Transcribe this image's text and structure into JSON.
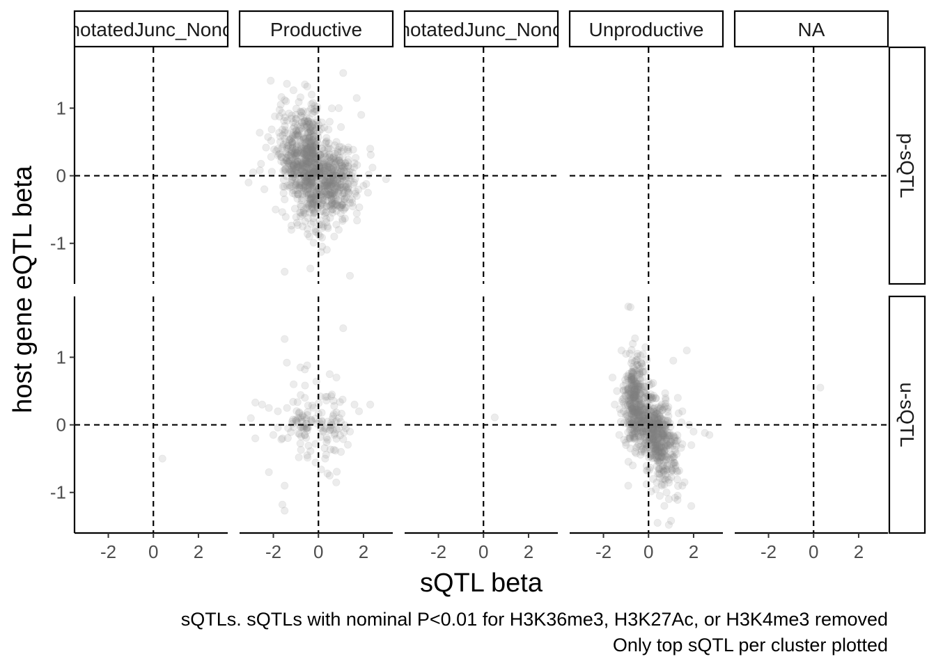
{
  "chart_data": {
    "type": "scatter",
    "xlabel": "sQTL beta",
    "ylabel": "host gene eQTL beta",
    "xlim": [
      -3.5,
      3.3
    ],
    "ylim": [
      -1.6,
      1.9
    ],
    "x_ticks": [
      -2,
      0,
      2
    ],
    "x_tick_labels": [
      "-2",
      "0",
      "2"
    ],
    "y_ticks": [
      -1,
      0,
      1
    ],
    "y_tick_labels": [
      "-1",
      "0",
      "1"
    ],
    "reference_lines": {
      "x": 0,
      "y": 0,
      "style": "dashed"
    },
    "grid": false,
    "point_color": "#808080",
    "point_opacity": 0.15,
    "col_facets": [
      "UnannotatedJunc_Noncoding",
      "Productive",
      "UnannotatedJunc_Noncoding",
      "Unproductive",
      "NA"
    ],
    "row_facets": [
      "p-sQTL",
      "u-sQTL"
    ],
    "caption_lines": [
      "sQTLs. sQTLs with nominal P<0.01 for H3K36me3, H3K27Ac, or H3K4me3 removed",
      "Only top sQTL per cluster plotted"
    ],
    "panels": [
      {
        "row": "p-sQTL",
        "col": 1,
        "points": [
          [
            -0.6,
            1.35
          ],
          [
            -0.5,
            1.32
          ],
          [
            1.1,
            1.52
          ],
          [
            1.7,
            1.15
          ],
          [
            -1.5,
            1.12
          ],
          [
            -0.3,
            1.2
          ],
          [
            0.9,
            1.0
          ],
          [
            1.9,
            0.9
          ],
          [
            -1.8,
            0.4
          ],
          [
            -2.1,
            0.28
          ],
          [
            -2.6,
            0.08
          ],
          [
            -3.1,
            -0.1
          ],
          [
            -2.9,
            0.05
          ],
          [
            2.3,
            0.4
          ],
          [
            2.4,
            0.12
          ],
          [
            3.0,
            -0.05
          ],
          [
            -1.9,
            -0.5
          ],
          [
            -1.5,
            -0.35
          ],
          [
            1.5,
            -0.4
          ],
          [
            1.7,
            -0.3
          ],
          [
            2.0,
            -0.15
          ],
          [
            -1.5,
            -1.42
          ],
          [
            1.4,
            -1.48
          ],
          [
            0.7,
            -0.9
          ],
          [
            0.4,
            -0.75
          ],
          [
            -0.8,
            -0.6
          ],
          [
            0.3,
            -0.55
          ],
          [
            0.5,
            0.8
          ],
          [
            1.0,
            0.72
          ],
          [
            0.8,
            0.5
          ],
          [
            -0.7,
            -0.75
          ],
          [
            -0.4,
            -0.9
          ],
          [
            -1.0,
            0.9
          ],
          [
            -0.2,
            0.95
          ],
          [
            1.3,
            0.2
          ],
          [
            -2.4,
            -0.2
          ],
          [
            2.2,
            -0.25
          ],
          [
            -1.2,
            -0.8
          ],
          [
            0.9,
            -0.8
          ],
          [
            -0.9,
            0.6
          ]
        ]
      },
      {
        "row": "u-sQTL",
        "col": 1,
        "points": [
          [
            -1.5,
            1.27
          ],
          [
            -1.4,
            0.92
          ],
          [
            1.1,
            1.43
          ],
          [
            -0.8,
            0.85
          ],
          [
            -0.5,
            0.88
          ],
          [
            -0.6,
            0.82
          ],
          [
            0.5,
            0.75
          ],
          [
            0.8,
            0.7
          ],
          [
            -3.0,
            0.1
          ],
          [
            -2.8,
            0.33
          ],
          [
            -2.5,
            0.3
          ],
          [
            -2.2,
            0.25
          ],
          [
            -1.8,
            0.2
          ],
          [
            1.6,
            0.3
          ],
          [
            1.8,
            0.2
          ],
          [
            2.3,
            0.3
          ],
          [
            -2.0,
            -0.15
          ],
          [
            -1.6,
            -0.2
          ],
          [
            1.4,
            -0.1
          ],
          [
            -2.2,
            -0.7
          ],
          [
            -1.5,
            -0.9
          ],
          [
            -1.5,
            -1.27
          ],
          [
            -1.6,
            -1.18
          ],
          [
            0.4,
            -0.72
          ],
          [
            0.5,
            -0.75
          ],
          [
            -0.5,
            -0.45
          ],
          [
            0.3,
            -0.5
          ],
          [
            -0.6,
            0.4
          ],
          [
            0.6,
            0.45
          ],
          [
            -2.8,
            -0.2
          ],
          [
            -1.1,
            0.6
          ],
          [
            1.0,
            -0.4
          ],
          [
            -0.3,
            0.05
          ],
          [
            0.2,
            -0.1
          ],
          [
            -0.9,
            0.1
          ]
        ]
      },
      {
        "row": "u-sQTL",
        "col": 0,
        "points": [
          [
            0.4,
            -0.5
          ]
        ]
      },
      {
        "row": "u-sQTL",
        "col": 2,
        "points": [
          [
            0.5,
            0.11
          ]
        ]
      },
      {
        "row": "u-sQTL",
        "col": 3,
        "points": [
          [
            -0.9,
            1.75
          ],
          [
            -0.8,
            1.74
          ],
          [
            -0.6,
            1.28
          ],
          [
            -0.7,
            1.2
          ],
          [
            -1.2,
            1.1
          ],
          [
            -1.0,
            1.05
          ],
          [
            1.7,
            1.1
          ],
          [
            1.1,
            0.95
          ],
          [
            -1.6,
            0.7
          ],
          [
            -1.4,
            0.5
          ],
          [
            -1.1,
            0.2
          ],
          [
            -1.3,
            -0.15
          ],
          [
            -1.0,
            -0.3
          ],
          [
            -0.9,
            -0.9
          ],
          [
            -0.7,
            -0.6
          ],
          [
            0.8,
            -1.0
          ],
          [
            0.5,
            -1.05
          ],
          [
            0.7,
            -1.2
          ],
          [
            0.4,
            -1.45
          ],
          [
            0.9,
            -1.48
          ],
          [
            1.0,
            -1.42
          ],
          [
            1.5,
            -0.9
          ],
          [
            2.0,
            -0.1
          ],
          [
            2.7,
            -0.15
          ],
          [
            2.5,
            -0.12
          ],
          [
            1.3,
            0.4
          ],
          [
            1.5,
            0.2
          ],
          [
            1.8,
            0.0
          ],
          [
            0.5,
            -0.65
          ],
          [
            -0.3,
            0.9
          ],
          [
            1.2,
            -0.6
          ],
          [
            0.2,
            -0.8
          ],
          [
            1.9,
            -0.3
          ],
          [
            -1.5,
            0.3
          ],
          [
            0.9,
            -1.1
          ],
          [
            0.6,
            -0.9
          ],
          [
            1.6,
            -0.85
          ],
          [
            -0.6,
            -0.4
          ]
        ]
      },
      {
        "row": "u-sQTL",
        "col": 4,
        "points": [
          [
            0.3,
            0.55
          ]
        ]
      }
    ],
    "clusters": [
      {
        "row": "p-sQTL",
        "col": 1,
        "cx": -0.7,
        "cy": 0.1,
        "sx": 0.55,
        "sy": 0.38,
        "n": 500,
        "slope": -0.3
      },
      {
        "row": "p-sQTL",
        "col": 1,
        "cx": 0.6,
        "cy": -0.05,
        "sx": 0.55,
        "sy": 0.28,
        "n": 380,
        "slope": -0.1
      },
      {
        "row": "p-sQTL",
        "col": 1,
        "cx": -0.3,
        "cy": 0.3,
        "sx": 0.22,
        "sy": 0.35,
        "n": 170,
        "slope": 0.0
      },
      {
        "row": "u-sQTL",
        "col": 1,
        "cx": -0.65,
        "cy": 0.05,
        "sx": 0.42,
        "sy": 0.22,
        "n": 70,
        "slope": 0.0
      },
      {
        "row": "u-sQTL",
        "col": 1,
        "cx": 0.6,
        "cy": 0.0,
        "sx": 0.35,
        "sy": 0.25,
        "n": 55,
        "slope": 0.0
      },
      {
        "row": "u-sQTL",
        "col": 3,
        "cx": -0.6,
        "cy": 0.35,
        "sx": 0.22,
        "sy": 0.32,
        "n": 320,
        "slope": 0.0
      },
      {
        "row": "u-sQTL",
        "col": 3,
        "cx": 0.45,
        "cy": -0.2,
        "sx": 0.42,
        "sy": 0.32,
        "n": 360,
        "slope": -0.35
      },
      {
        "row": "u-sQTL",
        "col": 3,
        "cx": 0.1,
        "cy": 0.0,
        "sx": 0.55,
        "sy": 0.22,
        "n": 180,
        "slope": -0.2
      }
    ]
  }
}
